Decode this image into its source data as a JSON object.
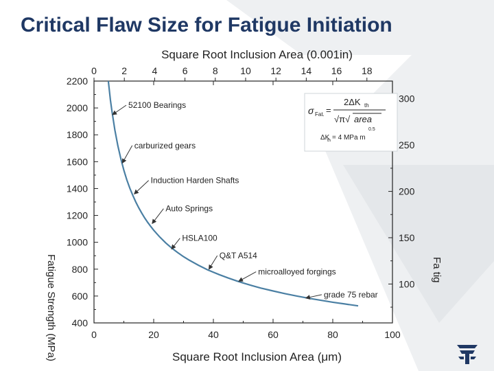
{
  "slide": {
    "title": "Critical Flaw Size for Fatigue Initiation"
  },
  "colors": {
    "title": "#1f3864",
    "curve": "#4a7fa3",
    "background_shape": "#eef0f2",
    "logo": "#1f3864"
  },
  "icons": {
    "logo": "company-logo-icon"
  },
  "chart_data": {
    "type": "line",
    "title": "",
    "xlabel": "Square Root Inclusion Area (μm)",
    "x2label": "Square Root Inclusion Area (0.001in)",
    "ylabel": "Fatigue Strength (MPa)",
    "y2label": "Fa tig",
    "xlim": [
      0,
      100
    ],
    "x2lim": [
      0,
      19.685
    ],
    "ylim": [
      400,
      2200
    ],
    "y2lim": [
      58.0,
      319.1
    ],
    "grid": false,
    "xticks": [
      0,
      20,
      40,
      60,
      80,
      100
    ],
    "x2ticks": [
      0,
      2,
      4,
      6,
      8,
      10,
      12,
      14,
      16,
      18
    ],
    "yticks": [
      400,
      600,
      800,
      1000,
      1200,
      1400,
      1600,
      1800,
      2000,
      2200
    ],
    "y2ticks": [
      100,
      150,
      200,
      250,
      300
    ],
    "series": [
      {
        "x": [
          4.8,
          5.5,
          6,
          7,
          8,
          9,
          10,
          11,
          12,
          13,
          14,
          15,
          16,
          17,
          18,
          19,
          20,
          22,
          24,
          26,
          28,
          30,
          32,
          35,
          38,
          40,
          42,
          45,
          48,
          50,
          53,
          56,
          60,
          64,
          68,
          72,
          76,
          80,
          84,
          88.5
        ],
        "y": [
          2200,
          2060,
          1978,
          1836,
          1718,
          1620,
          1537,
          1465,
          1403,
          1349,
          1300,
          1256,
          1217,
          1181,
          1148,
          1118,
          1090,
          1040,
          996,
          958,
          924,
          893,
          866,
          829,
          796,
          777,
          759,
          734,
          711,
          697,
          677,
          659,
          638,
          618,
          600,
          583,
          568,
          554,
          541,
          527
        ]
      }
    ],
    "annotations": [
      {
        "label": "52100 Bearings",
        "x": 11.5,
        "y": 2000,
        "target_x": 6.2,
        "target_y": 1950
      },
      {
        "label": "carburized gears",
        "x": 13.5,
        "y": 1700,
        "target_x": 9.5,
        "target_y": 1590
      },
      {
        "label": "Induction Harden Shafts",
        "x": 19,
        "y": 1440,
        "target_x": 13.5,
        "target_y": 1360
      },
      {
        "label": "Auto Springs",
        "x": 24,
        "y": 1230,
        "target_x": 19.5,
        "target_y": 1140
      },
      {
        "label": "HSLA100",
        "x": 29.5,
        "y": 1010,
        "target_x": 26,
        "target_y": 950
      },
      {
        "label": "Q&T A514",
        "x": 42,
        "y": 880,
        "target_x": 38.5,
        "target_y": 800
      },
      {
        "label": "microalloyed forgings",
        "x": 55,
        "y": 760,
        "target_x": 48.5,
        "target_y": 710
      },
      {
        "label": "grade 75 rebar",
        "x": 77,
        "y": 590,
        "target_x": 71,
        "target_y": 585
      }
    ],
    "legend": {
      "placement": "top-right",
      "formula_lhs": "σ",
      "formula_lhs_sub": "Fat.",
      "formula_numerator": "2ΔK",
      "formula_numerator_sub": "th",
      "formula_denominator_prefix": "√π√",
      "formula_denominator_term": "area",
      "formula_exponent": "0.5",
      "threshold_prefix": "ΔK",
      "threshold_sub": "th",
      "threshold_value": "= 4 MPa m"
    }
  }
}
